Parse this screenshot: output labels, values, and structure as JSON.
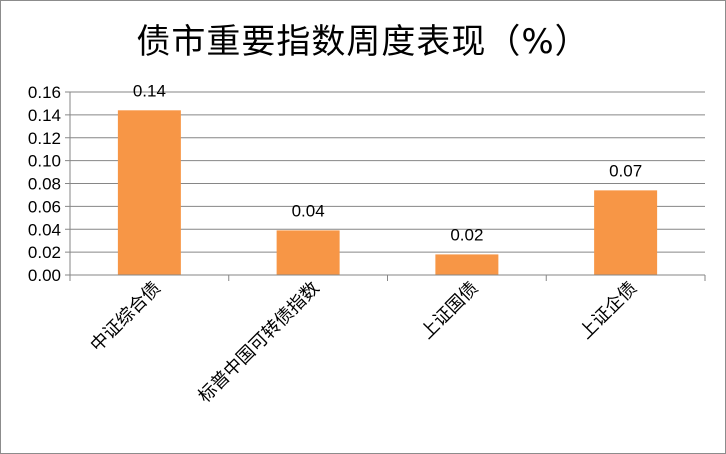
{
  "chart_data": {
    "type": "bar",
    "title": "债市重要指数周度表现（%）",
    "categories": [
      "中证综合债",
      "标普中国可转债指数",
      "上证国债",
      "上证企债"
    ],
    "values": [
      0.144,
      0.039,
      0.018,
      0.074
    ],
    "data_labels": [
      "0.14",
      "0.04",
      "0.02",
      "0.07"
    ],
    "ylim": [
      0,
      0.16
    ],
    "yticks": [
      "0.00",
      "0.02",
      "0.04",
      "0.06",
      "0.08",
      "0.10",
      "0.12",
      "0.14",
      "0.16"
    ],
    "grid": true,
    "bar_color": "#F79646",
    "grid_color": "#868686"
  }
}
